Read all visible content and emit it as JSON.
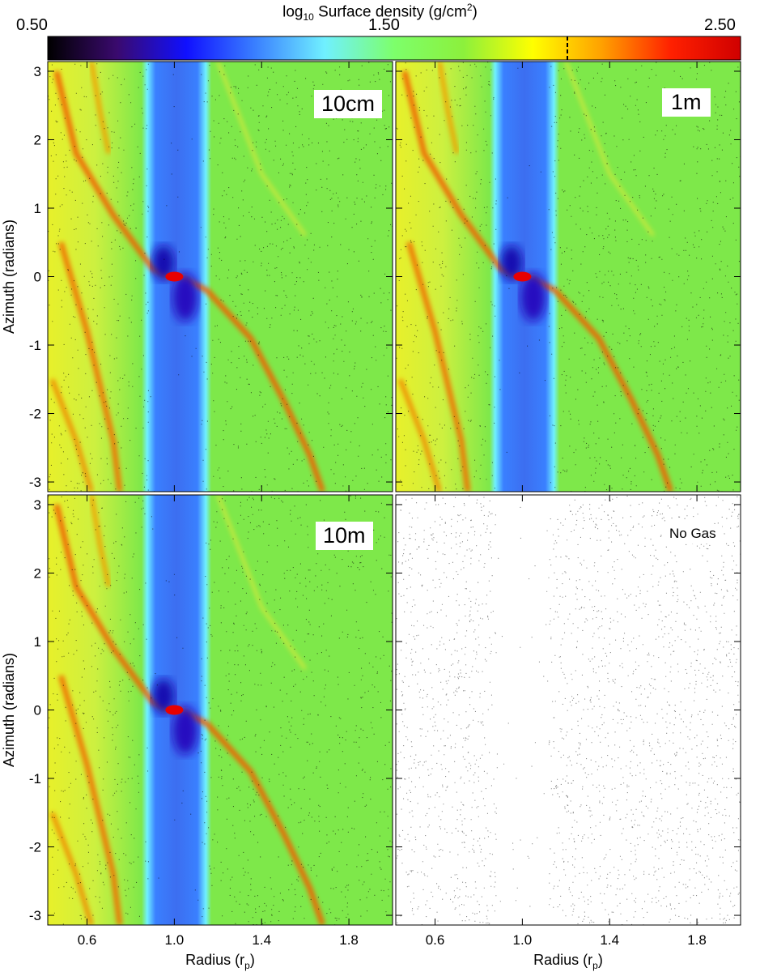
{
  "colorbar": {
    "title_prefix": "log",
    "title_sub": "10",
    "title_mid": " Surface density (g/cm",
    "title_sup": "2",
    "title_suffix": ")",
    "min_label": "0.50",
    "mid_label": "1.50",
    "max_label": "2.50",
    "stops": [
      "#000000",
      "#3a0a6e",
      "#1010ff",
      "#3a80ff",
      "#70f0ff",
      "#7dff6b",
      "#8cf03c",
      "#ffff00",
      "#ffa000",
      "#ff2000",
      "#d00000"
    ],
    "marker_value": 2.0
  },
  "axes": {
    "ylabel": "Azimuth (radians)",
    "xlabel": "Radius (r",
    "xlabel_sub": "p",
    "xlabel_suffix": ")"
  },
  "chart_data": {
    "type": "heatmap",
    "xlim": [
      0.42,
      2.0
    ],
    "ylim": [
      -3.14159,
      3.14159
    ],
    "xticks": [
      0.6,
      1.0,
      1.4,
      1.8
    ],
    "xtick_labels": [
      "0.6",
      "1.0",
      "1.4",
      "1.8"
    ],
    "yticks": [
      -3,
      -2,
      -1,
      0,
      1,
      2,
      3
    ],
    "ytick_labels": [
      "-3",
      "-2",
      "-1",
      "0",
      "1",
      "2",
      "3"
    ],
    "clim": [
      0.5,
      2.5
    ],
    "panels": [
      {
        "label": "10cm",
        "gas": true
      },
      {
        "label": "1m",
        "gas": true
      },
      {
        "label": "10m",
        "gas": true
      },
      {
        "label": "No Gas",
        "gas": false
      }
    ]
  },
  "colors": {
    "background_gas": "#7ee84a",
    "gap": "#3e78f0",
    "planet": "#e80000"
  }
}
